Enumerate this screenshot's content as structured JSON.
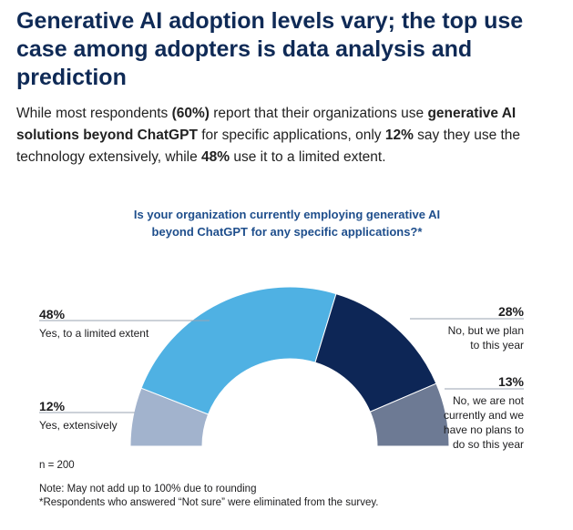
{
  "header": {
    "title": "Generative AI adoption levels vary; the top use case among adopters is data analysis and prediction"
  },
  "intro": {
    "t1": "While most respondents ",
    "b1": "(60%)",
    "t2": " report that their organizations use ",
    "b2": "generative AI solutions beyond ChatGPT",
    "t3": " for specific applications, only ",
    "b3": "12%",
    "t4": " say they use the technology extensively, while ",
    "b4": "48%",
    "t5": " use it to a limited extent."
  },
  "chart_data": {
    "type": "pie",
    "variant": "semi-donut",
    "title": "Is your organization currently employing generative AI beyond ChatGPT for any specific applications?*",
    "slices": [
      {
        "label": "Yes, extensively",
        "value": 12,
        "value_label": "12%",
        "color": "#a2b3cd"
      },
      {
        "label": "Yes, to a limited extent",
        "value": 48,
        "value_label": "48%",
        "color": "#4fb1e3"
      },
      {
        "label": "No, but we plan to this year",
        "value": 28,
        "value_label": "28%",
        "color": "#0d2656"
      },
      {
        "label": "No, we are not currently and we have no plans to do so this year",
        "value": 13,
        "value_label": "13%",
        "color": "#6d7a94"
      }
    ]
  },
  "footer": {
    "n": "n = 200",
    "note1": "Note: May not add up to 100% due to rounding",
    "note2": "*Respondents who answered “Not sure” were eliminated from the survey."
  }
}
